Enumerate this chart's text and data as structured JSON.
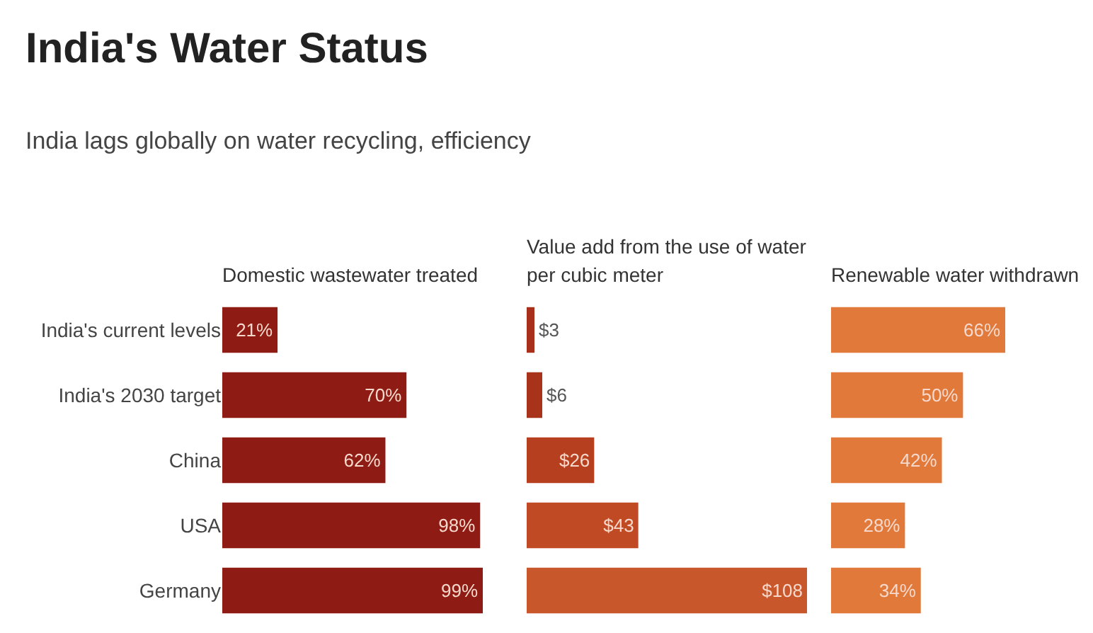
{
  "chart_data": [
    {
      "type": "bar",
      "title": "India's Water Status",
      "subtitle": "India lags globally on water recycling, efficiency",
      "xlabel": "Domestic wastewater treated",
      "orientation": "horizontal",
      "tick_labels": "y",
      "categories": [
        "India's current levels",
        "India's 2030 target",
        "China",
        "USA",
        "Germany"
      ],
      "values": [
        21,
        70,
        62,
        98,
        99
      ],
      "value_labels": [
        "21%",
        "70%",
        "62%",
        "98%",
        "99%"
      ],
      "color": "#8e1b14"
    },
    {
      "type": "bar",
      "xlabel": "Value add from the use of water per cubic meter",
      "orientation": "horizontal",
      "tick_labels": false,
      "categories": [
        "India's current levels",
        "India's 2030 target",
        "China",
        "USA",
        "Germany"
      ],
      "values": [
        3,
        6,
        26,
        43,
        108
      ],
      "value_labels": [
        "$3",
        "$6",
        "$26",
        "$43",
        "$108"
      ],
      "colors": [
        "#a8301a",
        "#a8321a",
        "#b53f1e",
        "#bf4a24",
        "#c9572c"
      ]
    },
    {
      "type": "bar",
      "xlabel": "Renewable water withdrawn",
      "orientation": "horizontal",
      "tick_labels": false,
      "categories": [
        "India's current levels",
        "India's 2030 target",
        "China",
        "USA",
        "Germany"
      ],
      "values": [
        66,
        50,
        42,
        28,
        34
      ],
      "value_labels": [
        "66%",
        "50%",
        "42%",
        "28%",
        "34%"
      ],
      "color": "#e0793a"
    }
  ]
}
